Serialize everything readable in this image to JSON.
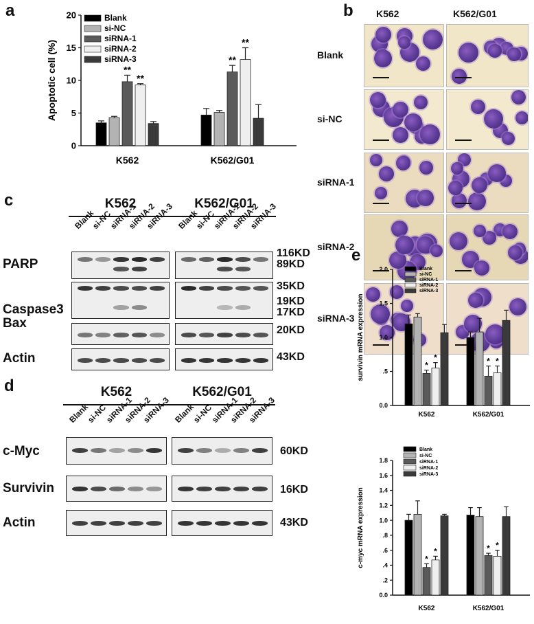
{
  "panels": {
    "a": "a",
    "b": "b",
    "c": "c",
    "d": "d",
    "e": "e"
  },
  "colors": {
    "blank": "#000000",
    "sinc": "#b3b3b3",
    "sirna1": "#5a5a5a",
    "sirna2": "#efefef",
    "sirna3": "#3a3a3a"
  },
  "chart_data": [
    {
      "panel": "a",
      "type": "bar",
      "ylabel": "Apoptotic cell (%)",
      "ylim": [
        0,
        20
      ],
      "yticks": [
        0,
        5,
        10,
        15,
        20
      ],
      "categories": [
        "K562",
        "K562/G01"
      ],
      "series": [
        {
          "name": "Blank",
          "values": [
            3.5,
            4.7
          ],
          "errors": [
            0.3,
            1.0
          ]
        },
        {
          "name": "si-NC",
          "values": [
            4.3,
            5.1
          ],
          "errors": [
            0.2,
            0.3
          ]
        },
        {
          "name": "siRNA-1",
          "values": [
            9.8,
            11.3
          ],
          "errors": [
            1.0,
            1.0
          ]
        },
        {
          "name": "siRNA-2",
          "values": [
            9.3,
            13.2
          ],
          "errors": [
            0.2,
            1.8
          ]
        },
        {
          "name": "siRNA-3",
          "values": [
            3.4,
            4.2
          ],
          "errors": [
            0.3,
            2.1
          ]
        }
      ],
      "annotations": [
        {
          "text": "**",
          "category": 0,
          "series": 2
        },
        {
          "text": "**",
          "category": 0,
          "series": 3
        },
        {
          "text": "**",
          "category": 1,
          "series": 2
        },
        {
          "text": "**",
          "category": 1,
          "series": 3
        }
      ],
      "legend": "top-left"
    },
    {
      "panel": "e1",
      "type": "bar",
      "ylabel": "survivin mRNA expression",
      "ylim": [
        0,
        2.0
      ],
      "yticks": [
        0,
        0.5,
        1.0,
        1.5,
        2.0
      ],
      "yticklabels": [
        "0.0",
        ".5",
        "1.0",
        "1.5",
        "2.0"
      ],
      "categories": [
        "K562",
        "K562/G01"
      ],
      "series": [
        {
          "name": "Blank",
          "values": [
            1.2,
            1.0
          ],
          "errors": [
            0.13,
            0.08
          ]
        },
        {
          "name": "si-NC",
          "values": [
            1.3,
            1.08
          ],
          "errors": [
            0.05,
            0.2
          ]
        },
        {
          "name": "siRNA-1",
          "values": [
            0.47,
            0.43
          ],
          "errors": [
            0.05,
            0.15
          ]
        },
        {
          "name": "siRNA-2",
          "values": [
            0.55,
            0.48
          ],
          "errors": [
            0.08,
            0.1
          ]
        },
        {
          "name": "siRNA-3",
          "values": [
            1.07,
            1.25
          ],
          "errors": [
            0.12,
            0.15
          ]
        }
      ],
      "annotations": [
        {
          "text": "*",
          "category": 0,
          "series": 2
        },
        {
          "text": "*",
          "category": 0,
          "series": 3
        },
        {
          "text": "*",
          "category": 1,
          "series": 2
        },
        {
          "text": "*",
          "category": 1,
          "series": 3
        }
      ],
      "legend": "top-left"
    },
    {
      "panel": "e2",
      "type": "bar",
      "ylabel": "c-myc mRNA expression",
      "ylim": [
        0,
        1.8
      ],
      "yticks": [
        0,
        0.2,
        0.4,
        0.6,
        0.8,
        1.0,
        1.2,
        1.4,
        1.6,
        1.8
      ],
      "yticklabels": [
        "0.0",
        ".2",
        ".4",
        ".6",
        ".8",
        "1.0",
        "1.2",
        "1.4",
        "1.6",
        "1.8"
      ],
      "categories": [
        "K562",
        "K562/G01"
      ],
      "series": [
        {
          "name": "Blank",
          "values": [
            1.0,
            1.07
          ],
          "errors": [
            0.08,
            0.1
          ]
        },
        {
          "name": "si-NC",
          "values": [
            1.08,
            1.05
          ],
          "errors": [
            0.18,
            0.12
          ]
        },
        {
          "name": "siRNA-1",
          "values": [
            0.37,
            0.53
          ],
          "errors": [
            0.05,
            0.03
          ]
        },
        {
          "name": "siRNA-2",
          "values": [
            0.47,
            0.52
          ],
          "errors": [
            0.05,
            0.08
          ]
        },
        {
          "name": "siRNA-3",
          "values": [
            1.06,
            1.05
          ],
          "errors": [
            0.02,
            0.13
          ]
        }
      ],
      "annotations": [
        {
          "text": "*",
          "category": 0,
          "series": 2
        },
        {
          "text": "*",
          "category": 0,
          "series": 3
        },
        {
          "text": "*",
          "category": 1,
          "series": 2
        },
        {
          "text": "*",
          "category": 1,
          "series": 3
        }
      ],
      "legend": "top-left"
    }
  ],
  "micrographs": {
    "columns": [
      "K562",
      "K562/G01"
    ],
    "rows": [
      "Blank",
      "si-NC",
      "siRNA-1",
      "siRNA-2",
      "siRNA-3"
    ]
  },
  "blots_c": {
    "groups": [
      "K562",
      "K562/G01"
    ],
    "lanes": [
      "Blank",
      "si-NC",
      "siRNA-1",
      "siRNA-2",
      "siRNA-3"
    ],
    "rows": [
      {
        "label": "PARP",
        "kd": [
          "116KD",
          "89KD"
        ]
      },
      {
        "label": "Caspase3",
        "kd": [
          "35KD",
          "19KD",
          "17KD"
        ]
      },
      {
        "label": "Bax",
        "kd": [
          "20KD"
        ]
      },
      {
        "label": "Actin",
        "kd": [
          "43KD"
        ]
      }
    ]
  },
  "blots_d": {
    "groups": [
      "K562",
      "K562/G01"
    ],
    "lanes": [
      "Blank",
      "si-NC",
      "siRNA-1",
      "siRNA-2",
      "siRNA-3"
    ],
    "rows": [
      {
        "label": "c-Myc",
        "kd": [
          "60KD"
        ]
      },
      {
        "label": "Survivin",
        "kd": [
          "16KD"
        ]
      },
      {
        "label": "Actin",
        "kd": [
          "43KD"
        ]
      }
    ]
  }
}
